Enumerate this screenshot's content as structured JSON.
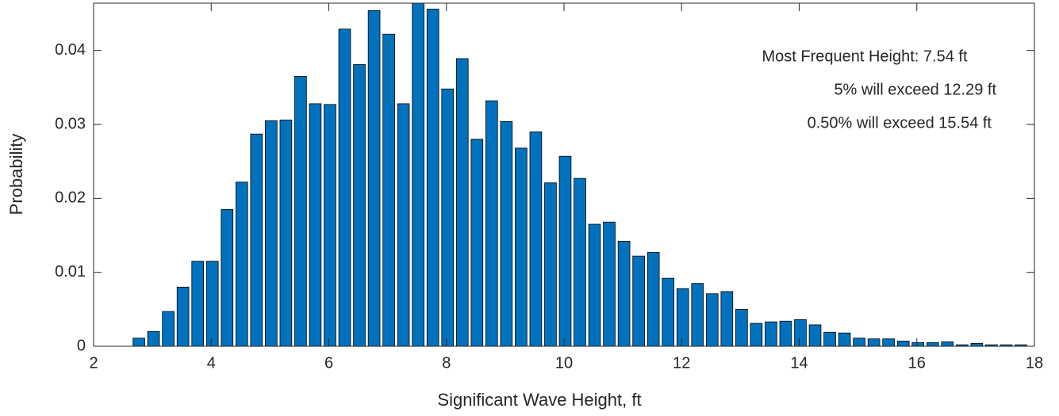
{
  "chart_data": {
    "type": "bar",
    "xlabel": "Significant Wave Height, ft",
    "ylabel": "Probability",
    "annotations": [
      "Most Frequent Height: 7.54 ft",
      "5% will exceed 12.29 ft",
      "0.50% will exceed 15.54 ft"
    ],
    "color": "#0072bd",
    "edgecolor": "#000000",
    "x": [
      2.77,
      3.02,
      3.27,
      3.52,
      3.77,
      4.02,
      4.27,
      4.52,
      4.77,
      5.02,
      5.27,
      5.52,
      5.77,
      6.02,
      6.27,
      6.52,
      6.77,
      7.02,
      7.27,
      7.52,
      7.77,
      8.02,
      8.27,
      8.52,
      8.77,
      9.02,
      9.27,
      9.52,
      9.77,
      10.02,
      10.27,
      10.52,
      10.77,
      11.02,
      11.27,
      11.52,
      11.77,
      12.02,
      12.27,
      12.52,
      12.77,
      13.02,
      13.27,
      13.52,
      13.77,
      14.02,
      14.27,
      14.52,
      14.77,
      15.02,
      15.27,
      15.52,
      15.77,
      16.02,
      16.27,
      16.52,
      16.77,
      17.02,
      17.27,
      17.52,
      17.77
    ],
    "values": [
      0.0011,
      0.002,
      0.0047,
      0.008,
      0.0115,
      0.0115,
      0.0185,
      0.0222,
      0.0287,
      0.0305,
      0.0306,
      0.0365,
      0.0328,
      0.0327,
      0.0429,
      0.0381,
      0.0454,
      0.0422,
      0.0328,
      0.0465,
      0.0456,
      0.0348,
      0.0389,
      0.028,
      0.0332,
      0.0304,
      0.0268,
      0.029,
      0.0221,
      0.0257,
      0.0227,
      0.0165,
      0.0168,
      0.0142,
      0.0122,
      0.0127,
      0.0092,
      0.0078,
      0.0085,
      0.0071,
      0.0074,
      0.005,
      0.0031,
      0.0033,
      0.0034,
      0.0036,
      0.0029,
      0.0019,
      0.0018,
      0.0011,
      0.001,
      0.001,
      0.0007,
      0.0005,
      0.0005,
      0.0006,
      0.0002,
      0.0004,
      0.0002,
      0.0002,
      0.0002
    ],
    "xlim": [
      2,
      18
    ],
    "xticks": [
      2,
      4,
      6,
      8,
      10,
      12,
      14,
      16,
      18
    ],
    "ylim": [
      0,
      0.0464
    ],
    "yticks": [
      0,
      0.01,
      0.02,
      0.03,
      0.04
    ],
    "grid": false
  }
}
